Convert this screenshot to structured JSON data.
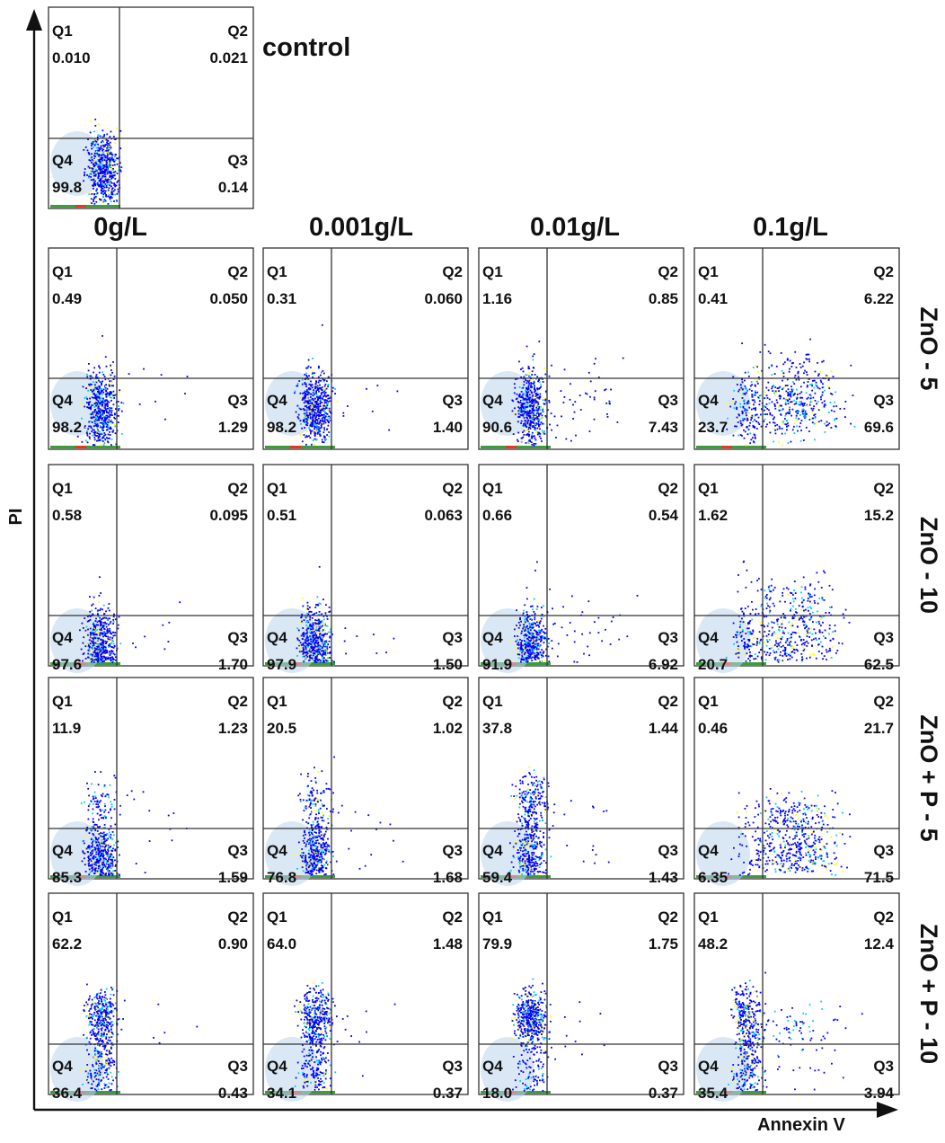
{
  "chart_data": {
    "type": "scatter",
    "description_axis": {
      "xlabel": "Annexin V",
      "ylabel": "PI"
    },
    "quadrant_labels": [
      "Q1",
      "Q2",
      "Q3",
      "Q4"
    ],
    "control": {
      "title": "control",
      "Q1": "0.010",
      "Q2": "0.021",
      "Q3": "0.14",
      "Q4": "99.8"
    },
    "columns": [
      "0g/L",
      "0.001g/L",
      "0.01g/L",
      "0.1g/L"
    ],
    "rows": [
      {
        "label": "ZnO - 5",
        "panels": [
          {
            "Q1": "0.49",
            "Q2": "0.050",
            "Q3": "1.29",
            "Q4": "98.2"
          },
          {
            "Q1": "0.31",
            "Q2": "0.060",
            "Q3": "1.40",
            "Q4": "98.2"
          },
          {
            "Q1": "1.16",
            "Q2": "0.85",
            "Q3": "7.43",
            "Q4": "90.6"
          },
          {
            "Q1": "0.41",
            "Q2": "6.22",
            "Q3": "69.6",
            "Q4": "23.7"
          }
        ]
      },
      {
        "label": "ZnO - 10",
        "panels": [
          {
            "Q1": "0.58",
            "Q2": "0.095",
            "Q3": "1.70",
            "Q4": "97.6"
          },
          {
            "Q1": "0.51",
            "Q2": "0.063",
            "Q3": "1.50",
            "Q4": "97.9"
          },
          {
            "Q1": "0.66",
            "Q2": "0.54",
            "Q3": "6.92",
            "Q4": "91.9"
          },
          {
            "Q1": "1.62",
            "Q2": "15.2",
            "Q3": "62.5",
            "Q4": "20.7"
          }
        ]
      },
      {
        "label": "ZnO + P - 5",
        "panels": [
          {
            "Q1": "11.9",
            "Q2": "1.23",
            "Q3": "1.59",
            "Q4": "85.3"
          },
          {
            "Q1": "20.5",
            "Q2": "1.02",
            "Q3": "1.68",
            "Q4": "76.8"
          },
          {
            "Q1": "37.8",
            "Q2": "1.44",
            "Q3": "1.43",
            "Q4": "59.4"
          },
          {
            "Q1": "0.46",
            "Q2": "21.7",
            "Q3": "71.5",
            "Q4": "6.35"
          }
        ]
      },
      {
        "label": "ZnO + P - 10",
        "panels": [
          {
            "Q1": "62.2",
            "Q2": "0.90",
            "Q3": "0.43",
            "Q4": "36.4"
          },
          {
            "Q1": "64.0",
            "Q2": "1.48",
            "Q3": "0.37",
            "Q4": "34.1"
          },
          {
            "Q1": "79.9",
            "Q2": "1.75",
            "Q3": "0.37",
            "Q4": "18.0"
          },
          {
            "Q1": "48.2",
            "Q2": "12.4",
            "Q3": "3.94",
            "Q4": "35.4"
          }
        ]
      }
    ],
    "colors": {
      "low": "#0000ff",
      "mid": "#00c8ff",
      "high": "#ffff00",
      "peak": "#ff2000",
      "haze": "#bcd6ee"
    }
  }
}
